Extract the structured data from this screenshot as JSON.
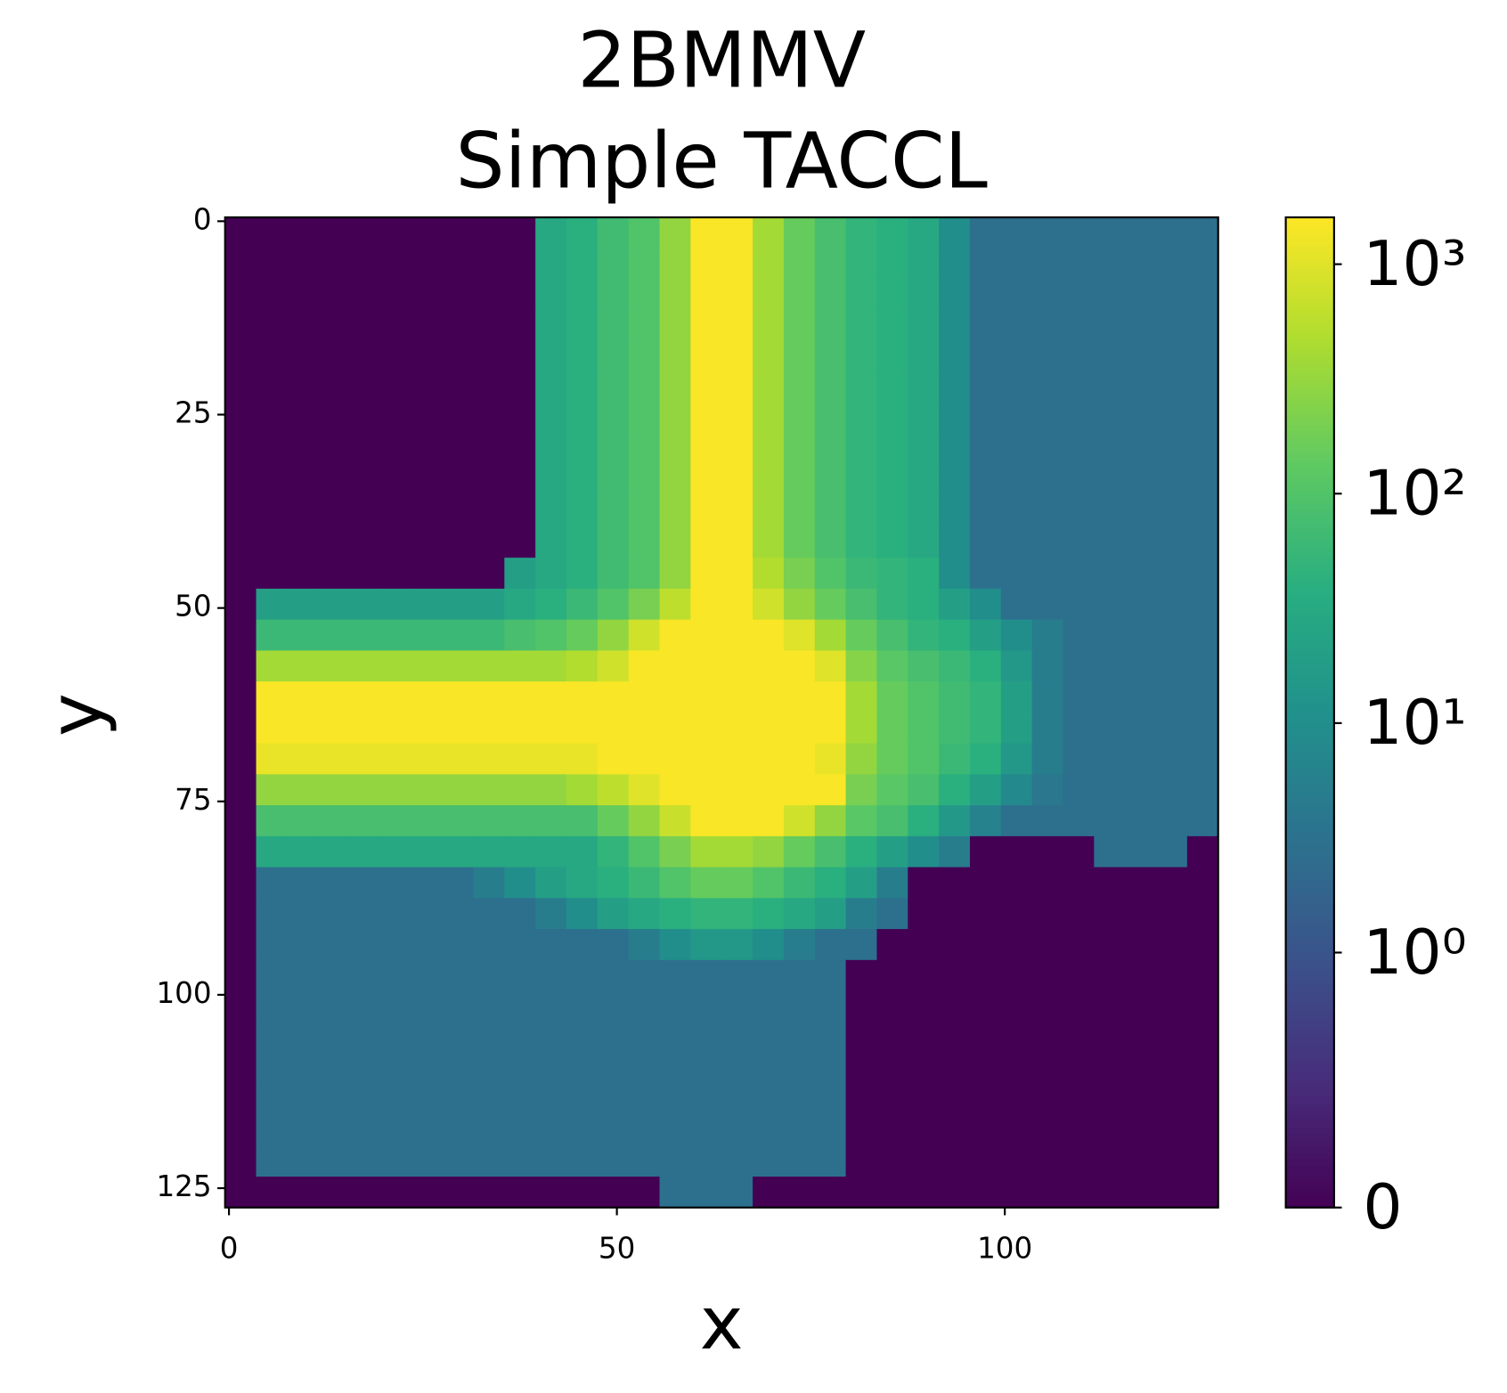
{
  "chart_data": {
    "type": "heatmap",
    "title": [
      "2BMMV",
      "Simple TACCL"
    ],
    "xlabel": "x",
    "ylabel": "y",
    "xlim": [
      -0.5,
      127.5
    ],
    "ylim": [
      127.5,
      -0.5
    ],
    "xticks": [
      0,
      50,
      100
    ],
    "yticks": [
      0,
      25,
      50,
      75,
      100,
      125
    ],
    "colormap": "viridis",
    "norm": "symlog",
    "linthresh": 1,
    "clim": [
      0,
      1600
    ],
    "cticks": [
      0,
      {
        "value": 1,
        "label": "10⁰"
      },
      {
        "value": 10,
        "label": "10¹"
      },
      {
        "value": 100,
        "label": "10²"
      },
      {
        "value": 1000,
        "label": "10³"
      }
    ],
    "z": [
      [
        0,
        0,
        0,
        0,
        0,
        0,
        0,
        0,
        0,
        0,
        30,
        40,
        70,
        100,
        300,
        1500,
        1500,
        400,
        150,
        80,
        50,
        40,
        30,
        10,
        3,
        3,
        3,
        3,
        3,
        3,
        3,
        3
      ],
      [
        0,
        0,
        0,
        0,
        0,
        0,
        0,
        0,
        0,
        0,
        30,
        40,
        70,
        100,
        300,
        1500,
        1500,
        400,
        150,
        80,
        50,
        40,
        30,
        10,
        3,
        3,
        3,
        3,
        3,
        3,
        3,
        3
      ],
      [
        0,
        0,
        0,
        0,
        0,
        0,
        0,
        0,
        0,
        0,
        30,
        40,
        70,
        100,
        300,
        1500,
        1500,
        400,
        150,
        80,
        50,
        40,
        30,
        10,
        3,
        3,
        3,
        3,
        3,
        3,
        3,
        3
      ],
      [
        0,
        0,
        0,
        0,
        0,
        0,
        0,
        0,
        0,
        0,
        30,
        40,
        70,
        100,
        300,
        1500,
        1500,
        400,
        150,
        80,
        50,
        40,
        30,
        10,
        3,
        3,
        3,
        3,
        3,
        3,
        3,
        3
      ],
      [
        0,
        0,
        0,
        0,
        0,
        0,
        0,
        0,
        0,
        0,
        30,
        40,
        70,
        100,
        300,
        1500,
        1500,
        400,
        150,
        80,
        50,
        40,
        30,
        10,
        3,
        3,
        3,
        3,
        3,
        3,
        3,
        3
      ],
      [
        0,
        0,
        0,
        0,
        0,
        0,
        0,
        0,
        0,
        0,
        30,
        40,
        70,
        100,
        300,
        1500,
        1500,
        400,
        150,
        80,
        50,
        40,
        30,
        10,
        3,
        3,
        3,
        3,
        3,
        3,
        3,
        3
      ],
      [
        0,
        0,
        0,
        0,
        0,
        0,
        0,
        0,
        0,
        0,
        30,
        40,
        70,
        100,
        300,
        1500,
        1500,
        400,
        150,
        80,
        50,
        40,
        30,
        10,
        3,
        3,
        3,
        3,
        3,
        3,
        3,
        3
      ],
      [
        0,
        0,
        0,
        0,
        0,
        0,
        0,
        0,
        0,
        0,
        30,
        40,
        70,
        100,
        300,
        1500,
        1500,
        400,
        150,
        80,
        50,
        40,
        30,
        10,
        3,
        3,
        3,
        3,
        3,
        3,
        3,
        3
      ],
      [
        0,
        0,
        0,
        0,
        0,
        0,
        0,
        0,
        0,
        0,
        30,
        40,
        70,
        100,
        300,
        1500,
        1500,
        400,
        150,
        80,
        50,
        40,
        30,
        10,
        3,
        3,
        3,
        3,
        3,
        3,
        3,
        3
      ],
      [
        0,
        0,
        0,
        0,
        0,
        0,
        0,
        0,
        0,
        0,
        30,
        40,
        70,
        100,
        300,
        1500,
        1500,
        400,
        150,
        80,
        50,
        40,
        30,
        10,
        3,
        3,
        3,
        3,
        3,
        3,
        3,
        3
      ],
      [
        0,
        0,
        0,
        0,
        0,
        0,
        0,
        0,
        0,
        0,
        30,
        40,
        70,
        100,
        300,
        1500,
        1500,
        400,
        150,
        80,
        50,
        40,
        30,
        10,
        3,
        3,
        3,
        3,
        3,
        3,
        3,
        3
      ],
      [
        0,
        0,
        0,
        0,
        0,
        0,
        0,
        0,
        0,
        20,
        30,
        40,
        70,
        100,
        300,
        1500,
        1500,
        500,
        200,
        100,
        60,
        50,
        40,
        10,
        3,
        3,
        3,
        3,
        3,
        3,
        3,
        3
      ],
      [
        0,
        20,
        20,
        20,
        20,
        20,
        20,
        20,
        20,
        30,
        40,
        60,
        100,
        200,
        600,
        1500,
        1500,
        800,
        300,
        150,
        80,
        50,
        40,
        20,
        10,
        3,
        3,
        3,
        3,
        3,
        3,
        3
      ],
      [
        0,
        60,
        60,
        60,
        60,
        60,
        60,
        60,
        60,
        80,
        100,
        150,
        300,
        800,
        1500,
        1500,
        1500,
        1500,
        1000,
        400,
        150,
        80,
        50,
        40,
        20,
        10,
        5,
        3,
        3,
        3,
        3,
        3
      ],
      [
        0,
        400,
        400,
        400,
        400,
        400,
        400,
        400,
        400,
        400,
        400,
        500,
        800,
        1500,
        1500,
        1500,
        1500,
        1500,
        1500,
        1000,
        250,
        120,
        80,
        60,
        40,
        15,
        5,
        3,
        3,
        3,
        3,
        3
      ],
      [
        0,
        1500,
        1500,
        1500,
        1500,
        1500,
        1500,
        1500,
        1500,
        1500,
        1500,
        1500,
        1500,
        1500,
        1500,
        1500,
        1500,
        1500,
        1500,
        1500,
        400,
        150,
        100,
        70,
        50,
        20,
        5,
        3,
        3,
        3,
        3,
        3
      ],
      [
        0,
        1500,
        1500,
        1500,
        1500,
        1500,
        1500,
        1500,
        1500,
        1500,
        1500,
        1500,
        1500,
        1500,
        1500,
        1500,
        1500,
        1500,
        1500,
        1500,
        400,
        150,
        100,
        70,
        50,
        20,
        5,
        3,
        3,
        3,
        3,
        3
      ],
      [
        0,
        1200,
        1200,
        1200,
        1200,
        1200,
        1200,
        1200,
        1200,
        1200,
        1200,
        1200,
        1500,
        1500,
        1500,
        1500,
        1500,
        1500,
        1500,
        1200,
        300,
        150,
        100,
        60,
        40,
        15,
        5,
        3,
        3,
        3,
        3,
        3
      ],
      [
        0,
        300,
        300,
        300,
        300,
        300,
        300,
        300,
        300,
        300,
        300,
        400,
        600,
        1000,
        1500,
        1500,
        1500,
        1500,
        1500,
        1500,
        200,
        120,
        80,
        40,
        20,
        8,
        4,
        3,
        3,
        3,
        3,
        3
      ],
      [
        0,
        80,
        80,
        80,
        80,
        80,
        80,
        80,
        80,
        80,
        80,
        80,
        150,
        300,
        700,
        1500,
        1500,
        1500,
        800,
        300,
        120,
        80,
        40,
        15,
        6,
        3,
        3,
        3,
        3,
        3,
        3,
        3
      ],
      [
        0,
        30,
        30,
        30,
        30,
        30,
        30,
        30,
        30,
        30,
        30,
        30,
        50,
        100,
        200,
        400,
        400,
        300,
        150,
        80,
        40,
        20,
        10,
        5,
        0,
        0,
        0,
        0,
        3,
        3,
        3,
        0
      ],
      [
        0,
        3,
        3,
        3,
        3,
        3,
        3,
        3,
        5,
        10,
        20,
        30,
        40,
        60,
        100,
        150,
        150,
        100,
        60,
        40,
        20,
        5,
        0,
        0,
        0,
        0,
        0,
        0,
        0,
        0,
        0,
        0
      ],
      [
        0,
        3,
        3,
        3,
        3,
        3,
        3,
        3,
        3,
        3,
        5,
        10,
        20,
        30,
        40,
        50,
        50,
        40,
        30,
        20,
        5,
        3,
        0,
        0,
        0,
        0,
        0,
        0,
        0,
        0,
        0,
        0
      ],
      [
        0,
        3,
        3,
        3,
        3,
        3,
        3,
        3,
        3,
        3,
        3,
        3,
        3,
        5,
        10,
        15,
        15,
        10,
        5,
        3,
        3,
        0,
        0,
        0,
        0,
        0,
        0,
        0,
        0,
        0,
        0,
        0
      ],
      [
        0,
        3,
        3,
        3,
        3,
        3,
        3,
        3,
        3,
        3,
        3,
        3,
        3,
        3,
        3,
        3,
        3,
        3,
        3,
        3,
        0,
        0,
        0,
        0,
        0,
        0,
        0,
        0,
        0,
        0,
        0,
        0
      ],
      [
        0,
        3,
        3,
        3,
        3,
        3,
        3,
        3,
        3,
        3,
        3,
        3,
        3,
        3,
        3,
        3,
        3,
        3,
        3,
        3,
        0,
        0,
        0,
        0,
        0,
        0,
        0,
        0,
        0,
        0,
        0,
        0
      ],
      [
        0,
        3,
        3,
        3,
        3,
        3,
        3,
        3,
        3,
        3,
        3,
        3,
        3,
        3,
        3,
        3,
        3,
        3,
        3,
        3,
        0,
        0,
        0,
        0,
        0,
        0,
        0,
        0,
        0,
        0,
        0,
        0
      ],
      [
        0,
        3,
        3,
        3,
        3,
        3,
        3,
        3,
        3,
        3,
        3,
        3,
        3,
        3,
        3,
        3,
        3,
        3,
        3,
        3,
        0,
        0,
        0,
        0,
        0,
        0,
        0,
        0,
        0,
        0,
        0,
        0
      ],
      [
        0,
        3,
        3,
        3,
        3,
        3,
        3,
        3,
        3,
        3,
        3,
        3,
        3,
        3,
        3,
        3,
        3,
        3,
        3,
        3,
        0,
        0,
        0,
        0,
        0,
        0,
        0,
        0,
        0,
        0,
        0,
        0
      ],
      [
        0,
        3,
        3,
        3,
        3,
        3,
        3,
        3,
        3,
        3,
        3,
        3,
        3,
        3,
        3,
        3,
        3,
        3,
        3,
        3,
        0,
        0,
        0,
        0,
        0,
        0,
        0,
        0,
        0,
        0,
        0,
        0
      ],
      [
        0,
        3,
        3,
        3,
        3,
        3,
        3,
        3,
        3,
        3,
        3,
        3,
        3,
        3,
        3,
        3,
        3,
        3,
        3,
        3,
        0,
        0,
        0,
        0,
        0,
        0,
        0,
        0,
        0,
        0,
        0,
        0
      ],
      [
        0,
        0,
        0,
        0,
        0,
        0,
        0,
        0,
        0,
        0,
        0,
        0,
        0,
        0,
        3,
        3,
        3,
        0,
        0,
        0,
        0,
        0,
        0,
        0,
        0,
        0,
        0,
        0,
        0,
        0,
        0,
        0
      ]
    ]
  }
}
